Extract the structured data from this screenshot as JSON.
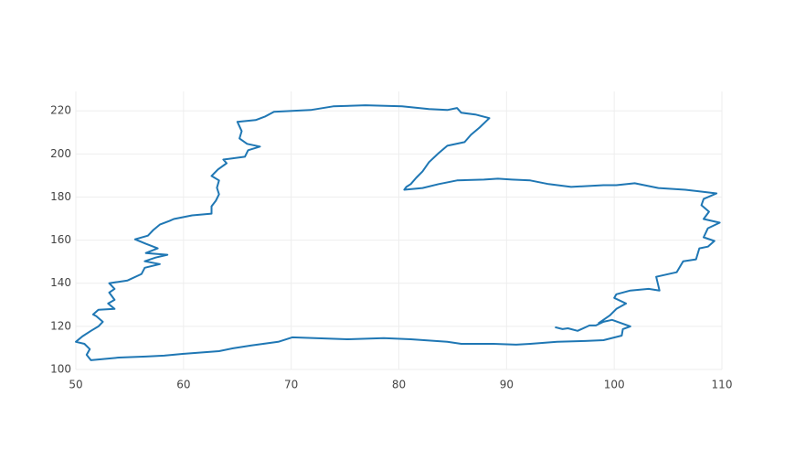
{
  "chart_data": {
    "type": "line",
    "color": "#1f77b4",
    "grid": true,
    "xlim": [
      50,
      110
    ],
    "ylim": [
      100,
      229
    ],
    "xticks": [
      50,
      60,
      70,
      80,
      90,
      100,
      110
    ],
    "yticks": [
      100,
      120,
      140,
      160,
      180,
      200,
      220
    ],
    "x": [
      94.5,
      95.2,
      95.7,
      96.6,
      97.7,
      98.3,
      99.0,
      99.8,
      101.5,
      100.8,
      100.7,
      99.0,
      97.3,
      94.7,
      92.2,
      90.9,
      88.8,
      85.8,
      84.5,
      81.1,
      78.6,
      75.2,
      70.1,
      68.8,
      66.3,
      64.6,
      63.3,
      59.9,
      58.2,
      56.5,
      54.0,
      51.4,
      51.0,
      51.3,
      50.8,
      50.0,
      50.6,
      51.4,
      52.1,
      52.5,
      51.9,
      51.6,
      52.1,
      53.6,
      53.0,
      53.6,
      53.1,
      53.6,
      53.1,
      54.8,
      56.1,
      56.4,
      57.8,
      56.4,
      57.4,
      58.5,
      56.5,
      57.6,
      56.5,
      55.5,
      56.7,
      57.2,
      57.8,
      58.7,
      59.1,
      60.8,
      62.6,
      62.6,
      63.0,
      63.3,
      63.1,
      63.3,
      62.6,
      63.2,
      64.0,
      63.7,
      65.7,
      66.0,
      67.1,
      65.9,
      65.2,
      65.4,
      65.0,
      66.7,
      67.6,
      68.4,
      71.8,
      73.9,
      76.9,
      80.3,
      82.8,
      84.5,
      85.4,
      85.8,
      87.1,
      88.4,
      87.5,
      86.7,
      86.1,
      84.5,
      83.7,
      82.8,
      82.2,
      81.6,
      81.1,
      80.7,
      80.5,
      82.2,
      83.7,
      85.4,
      87.9,
      89.2,
      90.5,
      92.2,
      93.9,
      96.0,
      99.0,
      100.2,
      101.9,
      104.1,
      106.6,
      109.5,
      108.3,
      108.1,
      108.8,
      108.3,
      109.8,
      108.7,
      108.3,
      109.3,
      108.7,
      107.9,
      107.6,
      106.4,
      105.8,
      103.9,
      104.2,
      103.2,
      101.5,
      100.2,
      100.0,
      101.1,
      100.2,
      99.6,
      98.5
    ],
    "values": [
      119.6,
      118.7,
      119.1,
      117.9,
      120.4,
      120.4,
      122.1,
      123.0,
      120.0,
      118.7,
      115.7,
      113.6,
      113.2,
      112.8,
      111.9,
      111.5,
      111.9,
      111.9,
      112.8,
      114.0,
      114.5,
      114.0,
      114.9,
      112.8,
      111.1,
      109.8,
      108.5,
      107.2,
      106.4,
      106.0,
      105.5,
      104.3,
      106.8,
      109.4,
      111.9,
      112.8,
      115.3,
      117.9,
      120.0,
      122.1,
      124.7,
      125.5,
      127.7,
      128.1,
      130.6,
      132.3,
      135.7,
      137.4,
      140.0,
      141.3,
      144.3,
      147.2,
      148.9,
      150.2,
      151.9,
      153.2,
      154.0,
      156.2,
      158.3,
      160.4,
      162.1,
      164.7,
      167.2,
      168.9,
      169.8,
      171.5,
      172.3,
      175.7,
      178.3,
      181.3,
      184.3,
      187.7,
      189.8,
      192.8,
      195.7,
      197.4,
      198.7,
      201.7,
      203.4,
      204.7,
      207.2,
      210.6,
      214.9,
      215.7,
      217.4,
      219.6,
      220.4,
      222.1,
      222.6,
      222.1,
      220.8,
      220.4,
      221.3,
      219.1,
      218.3,
      216.6,
      212.3,
      208.9,
      205.5,
      203.8,
      200.4,
      196.2,
      191.9,
      188.9,
      186.0,
      184.7,
      183.4,
      184.2,
      186.0,
      187.7,
      188.1,
      188.5,
      188.1,
      187.7,
      186.0,
      184.7,
      185.5,
      185.5,
      186.4,
      184.2,
      183.4,
      181.7,
      179.1,
      176.2,
      173.2,
      169.8,
      168.1,
      165.5,
      161.3,
      159.6,
      157.0,
      156.2,
      151.1,
      150.2,
      145.1,
      143.0,
      136.6,
      137.4,
      136.6,
      134.9,
      133.2,
      130.6,
      128.1,
      125.1,
      121.3
    ]
  }
}
